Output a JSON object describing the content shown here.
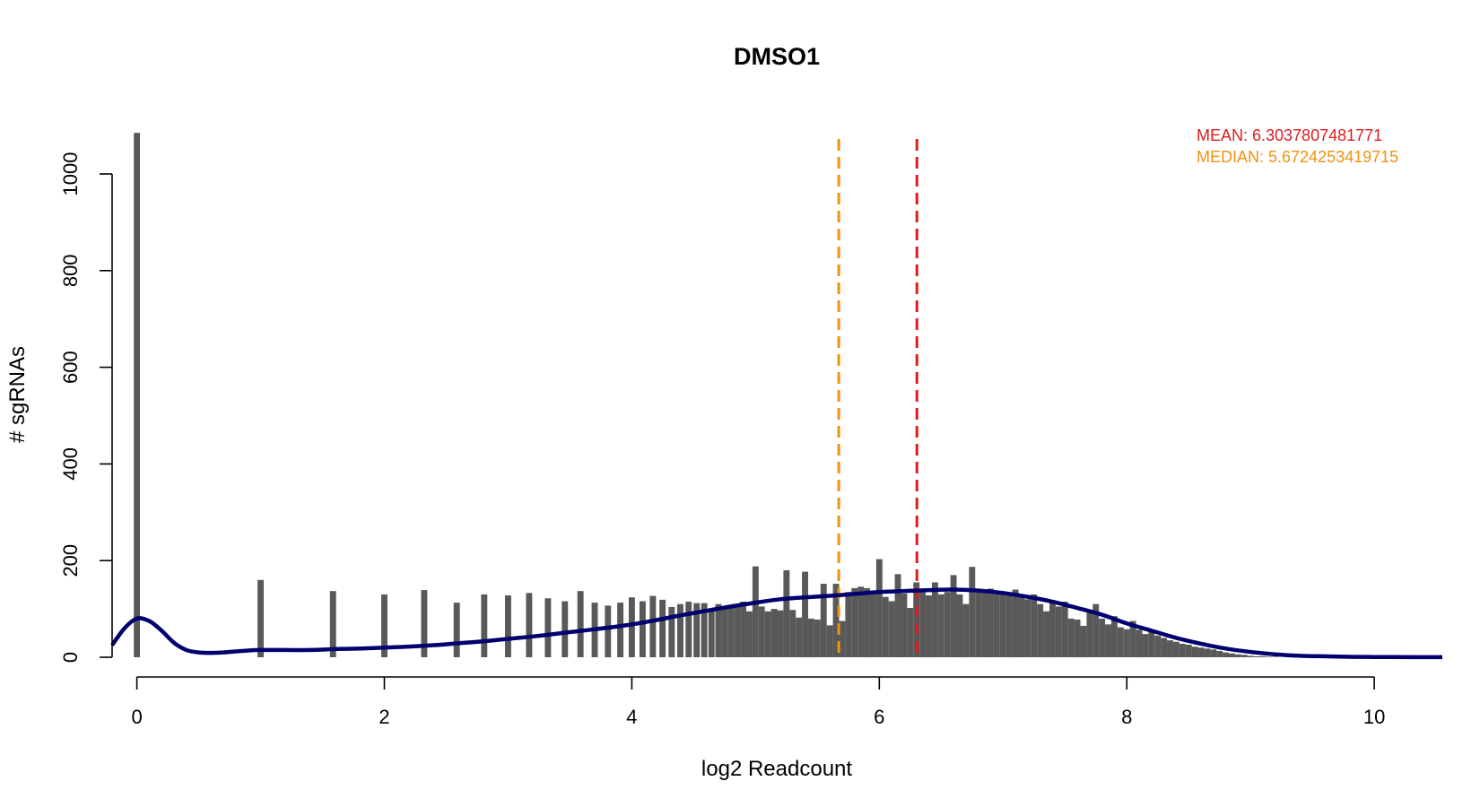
{
  "chart_data": {
    "type": "bar",
    "title": "DMSO1",
    "xlabel": "log2 Readcount",
    "ylabel": "# sgRNAs",
    "xlim": [
      -0.2,
      10.55
    ],
    "ylim": [
      0,
      1090
    ],
    "x_ticks": [
      0,
      2,
      4,
      6,
      8,
      10
    ],
    "y_ticks": [
      0,
      200,
      400,
      600,
      800,
      1000
    ],
    "bar_width": 0.05,
    "bars": {
      "x": [
        0.0,
        1.0,
        1.585,
        2.0,
        2.322,
        2.585,
        2.807,
        3.0,
        3.17,
        3.322,
        3.459,
        3.585,
        3.7,
        3.807,
        3.907,
        4.0,
        4.087,
        4.17,
        4.248,
        4.322,
        4.392,
        4.459,
        4.524,
        4.585,
        4.644,
        4.7,
        4.75,
        4.8,
        4.85,
        4.9,
        4.95,
        5.0,
        5.05,
        5.1,
        5.15,
        5.2,
        5.25,
        5.3,
        5.35,
        5.4,
        5.45,
        5.5,
        5.55,
        5.6,
        5.65,
        5.7,
        5.75,
        5.8,
        5.85,
        5.9,
        5.95,
        6.0,
        6.05,
        6.1,
        6.15,
        6.2,
        6.25,
        6.3,
        6.35,
        6.4,
        6.45,
        6.5,
        6.55,
        6.6,
        6.65,
        6.7,
        6.75,
        6.8,
        6.85,
        6.9,
        6.95,
        7.0,
        7.05,
        7.1,
        7.15,
        7.2,
        7.25,
        7.3,
        7.35,
        7.4,
        7.45,
        7.5,
        7.55,
        7.6,
        7.65,
        7.7,
        7.75,
        7.8,
        7.85,
        7.9,
        7.95,
        8.0,
        8.05,
        8.1,
        8.15,
        8.2,
        8.25,
        8.3,
        8.35,
        8.4,
        8.45,
        8.5,
        8.55,
        8.6,
        8.65,
        8.7,
        8.75,
        8.8,
        8.85,
        8.9,
        8.95,
        9.0,
        9.05,
        9.1,
        9.15,
        9.2
      ],
      "values": [
        1085,
        160,
        137,
        130,
        139,
        113,
        130,
        128,
        133,
        122,
        116,
        137,
        113,
        107,
        113,
        124,
        116,
        127,
        119,
        104,
        110,
        115,
        112,
        112,
        100,
        110,
        105,
        103,
        108,
        115,
        95,
        188,
        105,
        95,
        100,
        97,
        180,
        98,
        82,
        177,
        80,
        78,
        152,
        66,
        152,
        75,
        135,
        143,
        146,
        143,
        133,
        203,
        125,
        116,
        172,
        132,
        102,
        155,
        140,
        128,
        155,
        130,
        135,
        170,
        130,
        110,
        187,
        142,
        140,
        142,
        138,
        135,
        132,
        140,
        125,
        120,
        130,
        110,
        95,
        118,
        105,
        115,
        80,
        78,
        65,
        92,
        110,
        80,
        68,
        85,
        62,
        58,
        75,
        57,
        48,
        55,
        45,
        40,
        35,
        32,
        28,
        26,
        22,
        20,
        18,
        16,
        13,
        10,
        8,
        6,
        5,
        3,
        2,
        2,
        1,
        1
      ],
      "color": "#595959"
    },
    "density_curve": {
      "color": "#00006e",
      "x": [
        -0.2,
        -0.1,
        0.0,
        0.1,
        0.2,
        0.3,
        0.4,
        0.5,
        0.6,
        0.7,
        0.8,
        0.9,
        1.0,
        1.2,
        1.4,
        1.6,
        1.8,
        2.0,
        2.2,
        2.4,
        2.6,
        2.8,
        3.0,
        3.2,
        3.4,
        3.6,
        3.8,
        4.0,
        4.2,
        4.4,
        4.6,
        4.8,
        5.0,
        5.2,
        5.4,
        5.6,
        5.8,
        6.0,
        6.2,
        6.4,
        6.6,
        6.8,
        7.0,
        7.2,
        7.4,
        7.6,
        7.8,
        8.0,
        8.2,
        8.4,
        8.6,
        8.8,
        9.0,
        9.2,
        9.4,
        9.6,
        9.8,
        10.0,
        10.3,
        10.55
      ],
      "y": [
        25,
        60,
        80,
        75,
        55,
        30,
        15,
        10,
        9,
        10,
        12,
        14,
        15,
        15,
        15,
        17,
        18,
        20,
        22,
        25,
        29,
        33,
        38,
        43,
        49,
        55,
        61,
        68,
        77,
        87,
        96,
        105,
        113,
        120,
        124,
        127,
        131,
        135,
        137,
        139,
        140,
        138,
        133,
        125,
        115,
        102,
        88,
        70,
        55,
        40,
        28,
        18,
        11,
        6,
        3,
        2,
        1,
        0.5,
        0.3,
        0.2
      ]
    },
    "reference_lines": [
      {
        "name": "MEAN",
        "value": 6.3037807481771,
        "color": "#dd1c1c",
        "label": "MEAN: 6.3037807481771"
      },
      {
        "name": "MEDIAN",
        "value": 5.6724253419715,
        "color": "#f0920e",
        "label": "MEDIAN: 5.6724253419715"
      }
    ],
    "grid": false,
    "legend_placement": "top-right"
  }
}
